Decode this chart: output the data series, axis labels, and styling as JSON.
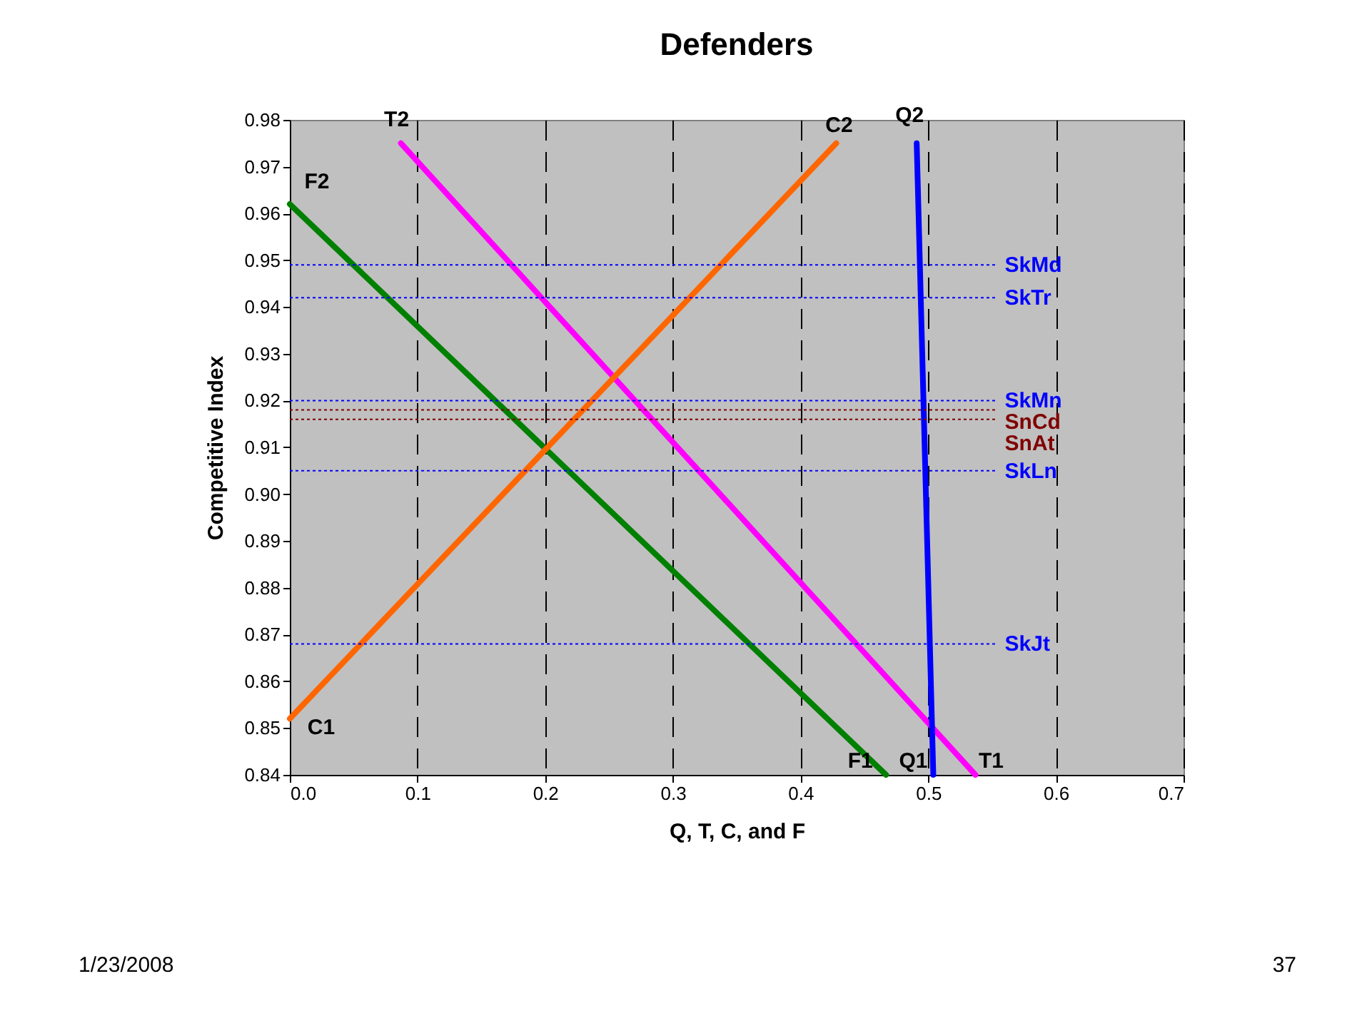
{
  "chart_data": {
    "type": "line",
    "title": "Defenders",
    "xlabel": "Q, T, C, and F",
    "ylabel": "Competitive Index",
    "series": [
      {
        "color": "#008000",
        "x": [
          0,
          0.467
        ],
        "values": [
          0.962,
          0.84
        ]
      },
      {
        "color": "#ff00ff",
        "x": [
          0.087,
          0.537
        ],
        "values": [
          0.975,
          0.84
        ]
      },
      {
        "color": "#ff6600",
        "x": [
          0,
          0.428
        ],
        "values": [
          0.852,
          0.975
        ]
      },
      {
        "color": "#0000ff",
        "x": [
          0.491,
          0.504
        ],
        "values": [
          0.975,
          0.84
        ]
      }
    ],
    "xlim": [
      0,
      0.7
    ],
    "ylim": [
      0.84,
      0.98
    ],
    "xticks": [
      {
        "value": 0,
        "label": "0.0"
      },
      0.1,
      0.2,
      0.3,
      0.4,
      0.5,
      0.6,
      0.7
    ],
    "yticks": [
      0.84,
      0.85,
      0.86,
      0.87,
      0.88,
      0.89,
      {
        "value": 0.9,
        "label": "0.90"
      },
      0.91,
      0.92,
      0.93,
      0.94,
      0.95,
      0.96,
      0.97,
      0.98
    ],
    "grid": "x",
    "marker": "none",
    "line_style": "solid",
    "ref_lines": [
      {
        "axis": "y",
        "value": 0.949,
        "label": "SkMd",
        "color": "#0000ff",
        "line_style": "dotted"
      },
      {
        "axis": "y",
        "value": 0.942,
        "label": "SkTr",
        "color": "#0000ff",
        "line_style": "dotted"
      },
      {
        "axis": "y",
        "value": 0.92,
        "label": "SkMn",
        "color": "#0000ff",
        "line_style": "dotted"
      },
      {
        "axis": "y",
        "value": 0.918,
        "label": "SnCd",
        "color": "#800000",
        "line_style": "dotted"
      },
      {
        "axis": "y",
        "value": 0.916,
        "label": "SnAt",
        "color": "#800000",
        "line_style": "dotted"
      },
      {
        "axis": "y",
        "value": 0.905,
        "label": "SkLn",
        "color": "#0000ff",
        "line_style": "dotted"
      },
      {
        "axis": "y",
        "value": 0.868,
        "label": "SkJt",
        "color": "#0000ff",
        "line_style": "dotted"
      }
    ],
    "annotations": [
      {
        "text": "F2",
        "x": 0,
        "y": 0.962
      },
      {
        "text": "T2",
        "x": 0.087,
        "y": 0.975
      },
      {
        "text": "C2",
        "x": 0.428,
        "y": 0.975
      },
      {
        "text": "Q2",
        "x": 0.491,
        "y": 0.975
      },
      {
        "text": "C1",
        "x": 0,
        "y": 0.852
      },
      {
        "text": "F1",
        "x": 0.467,
        "y": 0.84
      },
      {
        "text": "Q1",
        "x": 0.504,
        "y": 0.84
      },
      {
        "text": "T1",
        "x": 0.537,
        "y": 0.84
      },
      "1/23/2008",
      "37"
    ]
  }
}
